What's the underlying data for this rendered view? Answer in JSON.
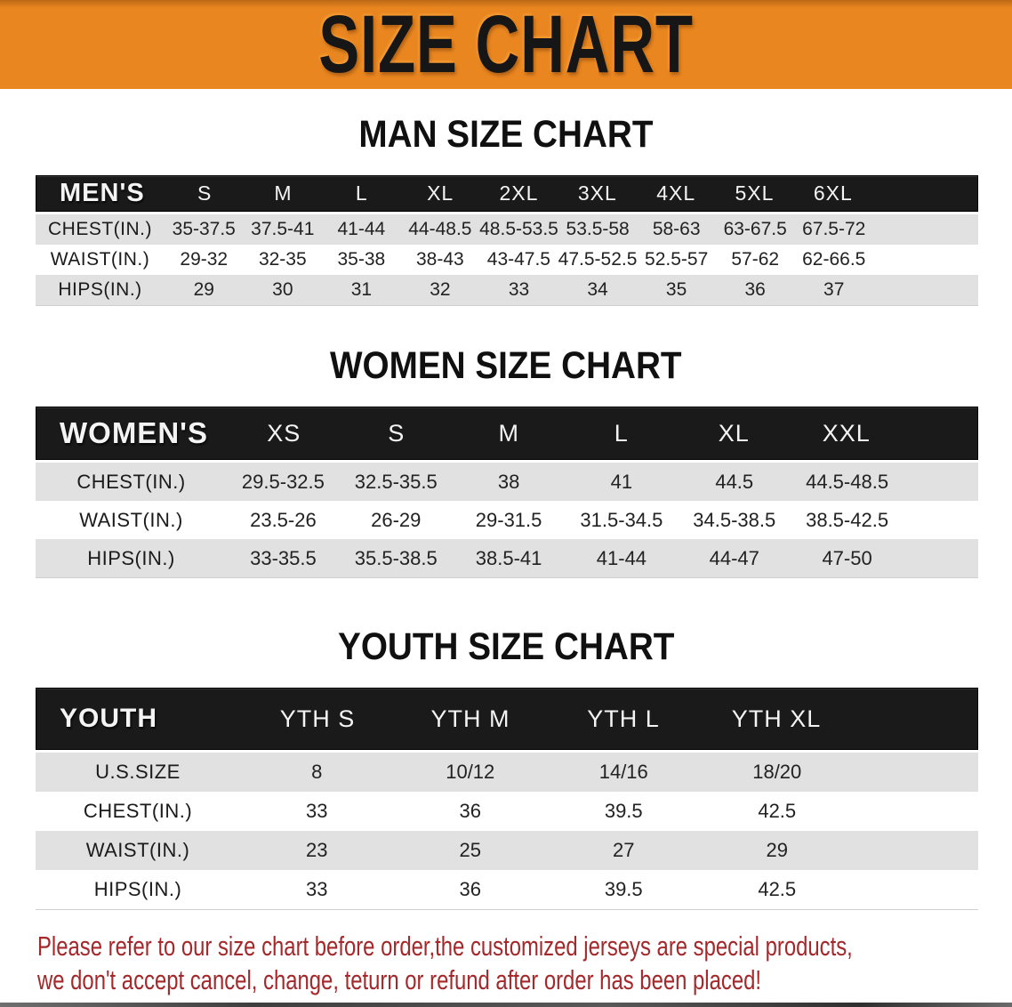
{
  "banner": {
    "title": "SIZE CHART"
  },
  "sections": [
    {
      "id": "men",
      "heading": "MAN SIZE CHART",
      "corner_label": "MEN'S",
      "columns": [
        "S",
        "M",
        "L",
        "XL",
        "2XL",
        "3XL",
        "4XL",
        "5XL",
        "6XL"
      ],
      "rows": [
        {
          "label": "CHEST(IN.)",
          "values": [
            "35-37.5",
            "37.5-41",
            "41-44",
            "44-48.5",
            "48.5-53.5",
            "53.5-58",
            "58-63",
            "63-67.5",
            "67.5-72"
          ]
        },
        {
          "label": "WAIST(IN.)",
          "values": [
            "29-32",
            "32-35",
            "35-38",
            "38-43",
            "43-47.5",
            "47.5-52.5",
            "52.5-57",
            "57-62",
            "62-66.5"
          ]
        },
        {
          "label": "HIPS(IN.)",
          "values": [
            "29",
            "30",
            "31",
            "32",
            "33",
            "34",
            "35",
            "36",
            "37"
          ]
        }
      ]
    },
    {
      "id": "women",
      "heading": "WOMEN SIZE CHART",
      "corner_label": "WOMEN'S",
      "columns": [
        "XS",
        "S",
        "M",
        "L",
        "XL",
        "XXL"
      ],
      "rows": [
        {
          "label": "CHEST(IN.)",
          "values": [
            "29.5-32.5",
            "32.5-35.5",
            "38",
            "41",
            "44.5",
            "44.5-48.5"
          ]
        },
        {
          "label": "WAIST(IN.)",
          "values": [
            "23.5-26",
            "26-29",
            "29-31.5",
            "31.5-34.5",
            "34.5-38.5",
            "38.5-42.5"
          ]
        },
        {
          "label": "HIPS(IN.)",
          "values": [
            "33-35.5",
            "35.5-38.5",
            "38.5-41",
            "41-44",
            "44-47",
            "47-50"
          ]
        }
      ]
    },
    {
      "id": "youth",
      "heading": "YOUTH SIZE CHART",
      "corner_label": "YOUTH",
      "columns": [
        "YTH S",
        "YTH M",
        "YTH L",
        "YTH XL"
      ],
      "rows": [
        {
          "label": "U.S.SIZE",
          "values": [
            "8",
            "10/12",
            "14/16",
            "18/20"
          ]
        },
        {
          "label": "CHEST(IN.)",
          "values": [
            "33",
            "36",
            "39.5",
            "42.5"
          ]
        },
        {
          "label": "WAIST(IN.)",
          "values": [
            "23",
            "25",
            "27",
            "29"
          ]
        },
        {
          "label": "HIPS(IN.)",
          "values": [
            "33",
            "36",
            "39.5",
            "42.5"
          ]
        }
      ]
    }
  ],
  "disclaimer": {
    "line1": "Please refer to our size chart before order,the customized jerseys are special products,",
    "line2": "we don't accept cancel, change, teturn or refund after order has been placed!"
  },
  "colors": {
    "banner_orange": "#E98620",
    "header_black": "#1A1A1A",
    "stripe_gray": "#E1E1E1",
    "disclaimer_red": "#A5282B"
  }
}
